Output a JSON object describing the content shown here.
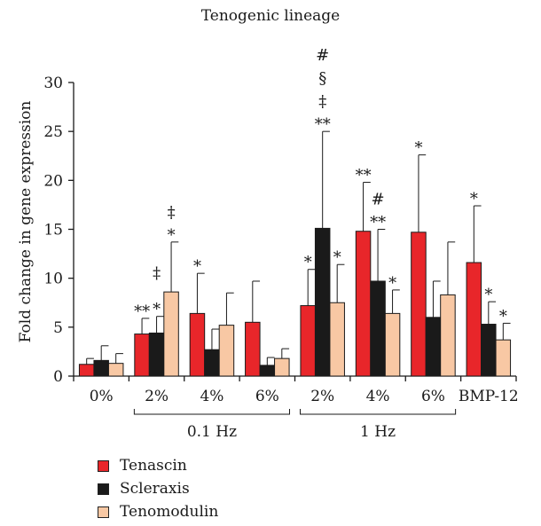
{
  "chart_data": {
    "type": "bar",
    "title": "Tenogenic lineage",
    "ylabel": "Fold change in gene expression",
    "xlabel": "",
    "ylim": [
      0,
      30
    ],
    "yticks": [
      "0",
      "5",
      "10",
      "15",
      "20",
      "25",
      "30"
    ],
    "categories": [
      "0%",
      "2%",
      "4%",
      "6%",
      "2%",
      "4%",
      "6%",
      "BMP-12"
    ],
    "groups": [
      {
        "label": "0.1 Hz",
        "categories": [
          "2%",
          "4%",
          "6%"
        ]
      },
      {
        "label": "1 Hz",
        "categories": [
          "2%",
          "4%",
          "6%"
        ]
      }
    ],
    "series": [
      {
        "name": "Tenascin",
        "color": "#e8262a",
        "values": [
          1.2,
          4.3,
          6.4,
          5.5,
          7.2,
          14.8,
          14.7,
          11.6
        ],
        "errors": [
          0.6,
          1.6,
          4.1,
          4.2,
          3.7,
          5.0,
          7.9,
          5.8
        ]
      },
      {
        "name": "Scleraxis",
        "color": "#1a1a1a",
        "values": [
          1.6,
          4.4,
          2.7,
          1.1,
          15.1,
          9.7,
          6.0,
          5.3
        ],
        "errors": [
          1.5,
          1.7,
          2.1,
          0.8,
          9.9,
          5.3,
          3.7,
          2.3
        ]
      },
      {
        "name": "Tenomodulin",
        "color": "#f8c8a4",
        "values": [
          1.3,
          8.6,
          5.2,
          1.8,
          7.5,
          6.4,
          8.3,
          3.7
        ],
        "errors": [
          1.0,
          5.1,
          3.3,
          1.0,
          3.9,
          2.4,
          5.4,
          1.7
        ]
      }
    ],
    "annotations": [
      {
        "category": 1,
        "series": 0,
        "text": "**"
      },
      {
        "category": 1,
        "series": 1,
        "text": "*"
      },
      {
        "category": 1,
        "series": 2,
        "text": "*‡"
      },
      {
        "category": 1,
        "series": 1,
        "text": "‡",
        "above": "error"
      },
      {
        "category": 2,
        "series": 0,
        "text": "*"
      },
      {
        "category": 4,
        "series": 0,
        "text": "*"
      },
      {
        "category": 4,
        "series": 1,
        "text": "**‡§#"
      },
      {
        "category": 4,
        "series": 2,
        "text": "*"
      },
      {
        "category": 5,
        "series": 0,
        "text": "**"
      },
      {
        "category": 5,
        "series": 1,
        "text": "**#"
      },
      {
        "category": 5,
        "series": 2,
        "text": "*"
      },
      {
        "category": 6,
        "series": 0,
        "text": "*"
      },
      {
        "category": 7,
        "series": 0,
        "text": "*"
      },
      {
        "category": 7,
        "series": 1,
        "text": "*"
      },
      {
        "category": 7,
        "series": 2,
        "text": "*"
      }
    ],
    "legend": "bottom-left",
    "grid": false
  }
}
